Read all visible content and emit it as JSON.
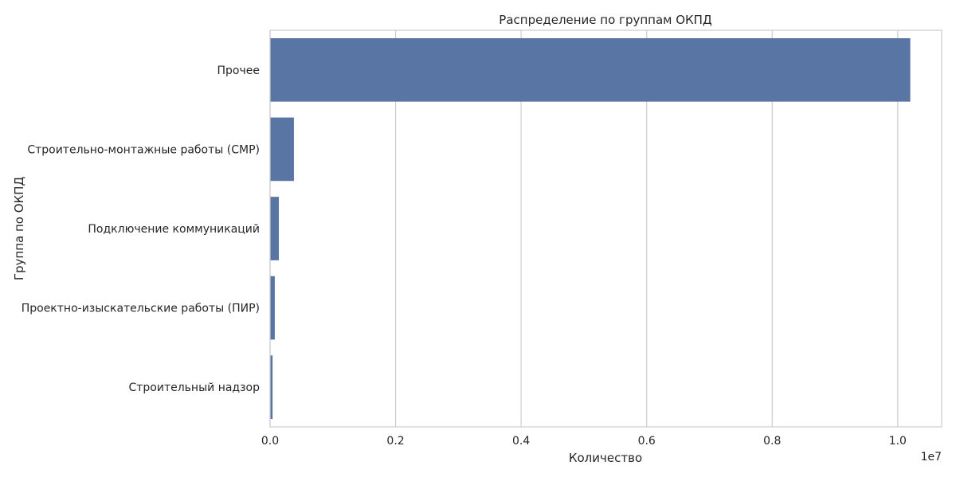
{
  "chart_data": {
    "type": "bar",
    "orientation": "horizontal",
    "title": "Распределение по группам ОКПД",
    "xlabel": "Количество",
    "ylabel": "Группа по ОКПД",
    "axis_offset_label": "1e7",
    "categories": [
      "Прочее",
      "Строительно-монтажные работы (СМР)",
      "Подключение коммуникаций",
      "Проектно-изыскательские работы (ПИР)",
      "Строительный надзор"
    ],
    "values": [
      10200000,
      380000,
      140000,
      75000,
      40000
    ],
    "xlim": [
      0,
      10700000
    ],
    "xticks": [
      0,
      2000000,
      4000000,
      6000000,
      8000000,
      10000000
    ],
    "xtick_labels": [
      "0.0",
      "0.2",
      "0.4",
      "0.6",
      "0.8",
      "1.0"
    ],
    "grid": true,
    "colors": {
      "bar": "#5875a4",
      "grid": "#cccccc"
    }
  }
}
